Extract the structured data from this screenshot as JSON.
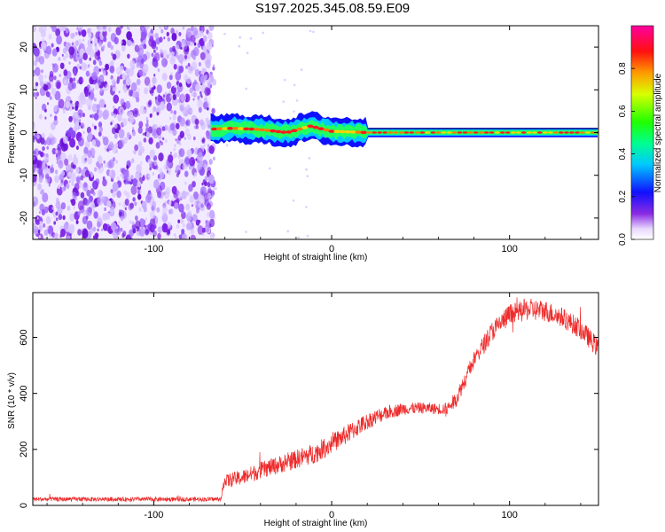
{
  "figure": {
    "title": "S197.2025.345.08.59.E09"
  },
  "colors": {
    "snr_line": "#ee2a2a",
    "spectro_background": "#ffffff",
    "noise_purple": "#7b1fe6"
  },
  "chart_data": [
    {
      "type": "heatmap",
      "name": "spectrogram",
      "xlabel": "Height of straight line (km)",
      "ylabel": "Frequency (Hz)",
      "xlim": [
        -168,
        150
      ],
      "ylim": [
        -25,
        25
      ],
      "xticks": [
        -100,
        0,
        100
      ],
      "xtick_labels": [
        "-100",
        "0",
        "100"
      ],
      "yticks": [
        -20,
        -10,
        0,
        10,
        20
      ],
      "ytick_labels": [
        "-20",
        "-10",
        "0",
        "10",
        "20"
      ],
      "colorbar": {
        "label": "Normalized spectral amplitude",
        "range": [
          0,
          1
        ],
        "ticks": [
          0,
          0.2,
          0.4,
          0.6,
          0.8
        ],
        "tick_labels": [
          "0.0",
          "0.2",
          "0.4",
          "0.6",
          "0.8"
        ],
        "colormap": "rainbow (white/purple low → blue → cyan → green → yellow → red → magenta high)"
      },
      "noise_region_x": [
        -168,
        -68
      ],
      "signal_track": [
        {
          "x": -68,
          "y": 0.8
        },
        {
          "x": -55,
          "y": 1.0
        },
        {
          "x": -40,
          "y": 0.7
        },
        {
          "x": -25,
          "y": 0.0
        },
        {
          "x": -12,
          "y": 1.5
        },
        {
          "x": 0,
          "y": 0.3
        },
        {
          "x": 20,
          "y": 0.0
        },
        {
          "x": 150,
          "y": 0.0
        }
      ]
    },
    {
      "type": "line",
      "name": "snr",
      "xlabel": "Height of straight line (km)",
      "ylabel": "SNR (10 * v/v)",
      "xlim": [
        -168,
        150
      ],
      "ylim": [
        0,
        760
      ],
      "xticks": [
        -100,
        0,
        100
      ],
      "xtick_labels": [
        "-100",
        "0",
        "100"
      ],
      "yticks": [
        0,
        200,
        400,
        600
      ],
      "ytick_labels": [
        "0",
        "200",
        "400",
        "600"
      ],
      "series": [
        {
          "name": "SNR",
          "x": [
            -168,
            -140,
            -110,
            -80,
            -62,
            -61,
            -50,
            -40,
            -30,
            -20,
            -10,
            0,
            10,
            20,
            30,
            40,
            50,
            60,
            65,
            70,
            75,
            80,
            90,
            100,
            110,
            120,
            130,
            140,
            150
          ],
          "y": [
            22,
            22,
            22,
            22,
            22,
            85,
            100,
            125,
            145,
            165,
            185,
            220,
            260,
            300,
            330,
            345,
            348,
            345,
            345,
            380,
            450,
            520,
            620,
            680,
            700,
            695,
            670,
            630,
            560
          ],
          "noise_amplitude": [
            8,
            8,
            8,
            8,
            8,
            25,
            28,
            30,
            32,
            34,
            36,
            36,
            34,
            30,
            26,
            22,
            20,
            20,
            24,
            28,
            30,
            32,
            36,
            40,
            40,
            38,
            36,
            36,
            36
          ]
        }
      ]
    }
  ]
}
